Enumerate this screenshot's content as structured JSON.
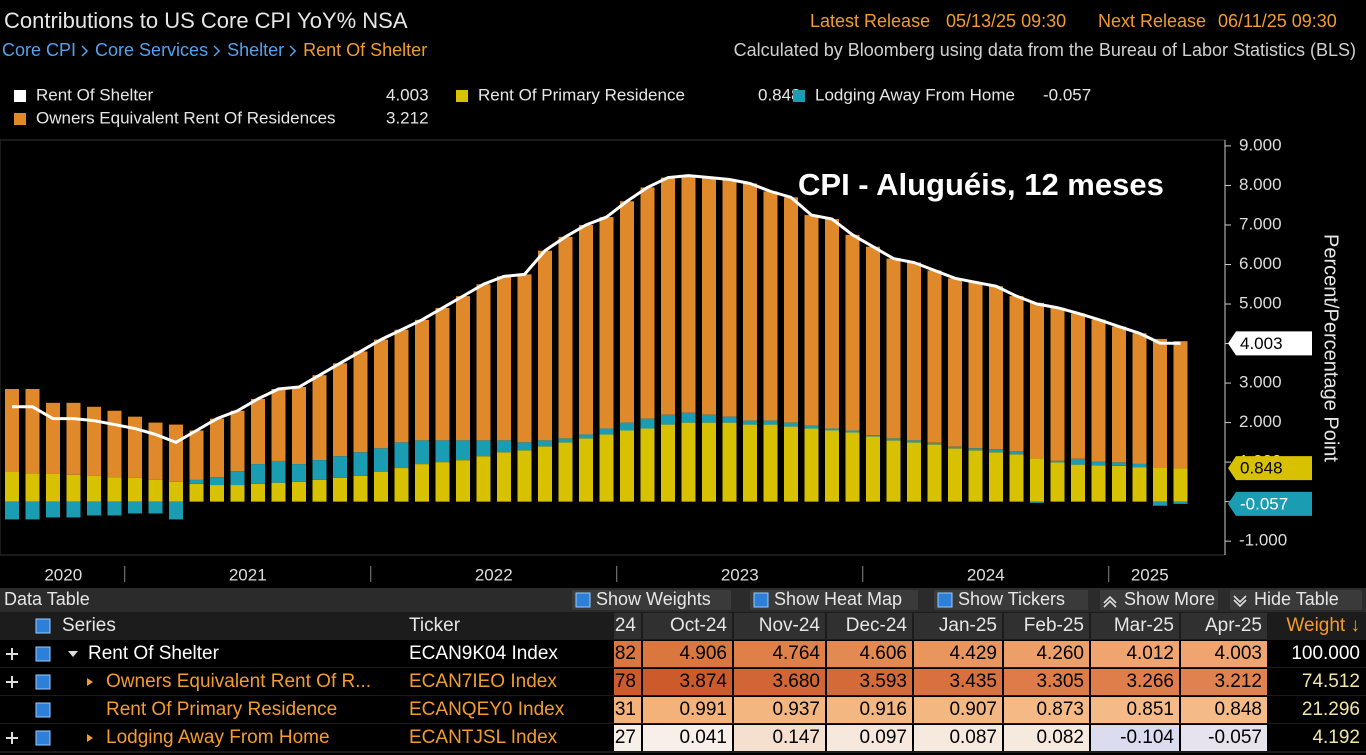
{
  "header": {
    "title": "Contributions to US Core CPI YoY% NSA",
    "breadcrumb": [
      "Core CPI",
      "Core Services",
      "Shelter",
      "Rent Of Shelter"
    ],
    "latest_release_label": "Latest Release",
    "latest_release": "05/13/25 09:30",
    "next_release_label": "Next Release",
    "next_release": "06/11/25 09:30",
    "source": "Calculated by Bloomberg using data from the Bureau of Labor Statistics (BLS)"
  },
  "chart_data": {
    "type": "bar",
    "stacked": true,
    "annotation": "CPI - Aluguéis, 12 meses",
    "ylabel": "Percent/Percentage Point",
    "xtick_labels": [
      "2020",
      "2021",
      "2022",
      "2023",
      "2024",
      "2025"
    ],
    "ylim": [
      -1.35,
      9.15
    ],
    "yticks": [
      {
        "value": 9,
        "label": "9.000"
      },
      {
        "value": 8,
        "label": "8.000"
      },
      {
        "value": 7,
        "label": "7.000"
      },
      {
        "value": 6,
        "label": "6.000"
      },
      {
        "value": 5,
        "label": "5.000"
      },
      {
        "value": 4,
        "label": "4.000"
      },
      {
        "value": 3,
        "label": "3.000"
      },
      {
        "value": 2,
        "label": "2.000"
      },
      {
        "value": 1,
        "label": "1.000"
      },
      {
        "value": 0,
        "label": "0.000"
      },
      {
        "value": -1,
        "label": "-1.000"
      }
    ],
    "series": [
      {
        "name": "Rent Of Shelter",
        "type": "line",
        "color": "#ffffff",
        "values": [
          2.4,
          2.4,
          2.1,
          2.1,
          2.05,
          1.95,
          1.85,
          1.7,
          1.5,
          1.8,
          2.1,
          2.3,
          2.6,
          2.85,
          2.9,
          3.2,
          3.5,
          3.8,
          4.1,
          4.35,
          4.6,
          4.9,
          5.2,
          5.5,
          5.7,
          5.75,
          6.35,
          6.7,
          7.0,
          7.2,
          7.6,
          7.95,
          8.2,
          8.25,
          8.2,
          8.15,
          8.05,
          7.85,
          7.7,
          7.25,
          7.15,
          6.75,
          6.45,
          6.15,
          6.05,
          5.85,
          5.65,
          5.55,
          5.45,
          5.2,
          5.0,
          4.906,
          4.764,
          4.606,
          4.429,
          4.26,
          4.012,
          4.003
        ]
      },
      {
        "name": "Owners Equivalent Rent Of Residences",
        "color": "#e0892b",
        "values": [
          2.1,
          2.13,
          1.8,
          1.82,
          1.75,
          1.68,
          1.55,
          1.45,
          1.45,
          1.25,
          1.48,
          1.53,
          1.65,
          1.82,
          1.95,
          2.15,
          2.35,
          2.55,
          2.75,
          2.85,
          3.05,
          3.35,
          3.65,
          3.95,
          4.15,
          4.25,
          4.8,
          5.1,
          5.3,
          5.35,
          5.6,
          5.85,
          6.0,
          6.0,
          6.0,
          6.0,
          6.0,
          5.8,
          5.7,
          5.33,
          5.3,
          4.95,
          4.77,
          4.55,
          4.5,
          4.36,
          4.26,
          4.2,
          4.12,
          3.92,
          3.93,
          3.874,
          3.68,
          3.593,
          3.435,
          3.305,
          3.266,
          3.212
        ]
      },
      {
        "name": "Rent Of Primary Residence",
        "color": "#d8c100",
        "values": [
          0.75,
          0.72,
          0.7,
          0.68,
          0.65,
          0.62,
          0.6,
          0.55,
          0.5,
          0.45,
          0.42,
          0.42,
          0.45,
          0.48,
          0.5,
          0.55,
          0.6,
          0.65,
          0.75,
          0.85,
          0.95,
          1.0,
          1.05,
          1.15,
          1.25,
          1.3,
          1.4,
          1.5,
          1.6,
          1.7,
          1.8,
          1.85,
          1.95,
          2.0,
          2.0,
          2.0,
          1.95,
          1.95,
          1.9,
          1.85,
          1.8,
          1.75,
          1.65,
          1.55,
          1.5,
          1.45,
          1.35,
          1.3,
          1.25,
          1.2,
          1.1,
          0.991,
          0.937,
          0.916,
          0.907,
          0.873,
          0.851,
          0.848
        ]
      },
      {
        "name": "Lodging Away From Home",
        "color": "#1a9cb2",
        "values": [
          -0.45,
          -0.45,
          -0.4,
          -0.4,
          -0.35,
          -0.35,
          -0.3,
          -0.3,
          -0.45,
          0.1,
          0.2,
          0.35,
          0.5,
          0.55,
          0.45,
          0.5,
          0.55,
          0.6,
          0.6,
          0.65,
          0.6,
          0.55,
          0.5,
          0.4,
          0.3,
          0.2,
          0.15,
          0.1,
          0.1,
          0.15,
          0.2,
          0.25,
          0.25,
          0.25,
          0.2,
          0.15,
          0.1,
          0.1,
          0.1,
          0.07,
          0.05,
          0.05,
          0.03,
          0.05,
          0.05,
          0.04,
          0.04,
          0.05,
          0.08,
          0.08,
          -0.03,
          0.041,
          0.147,
          0.097,
          0.087,
          0.082,
          -0.104,
          -0.057
        ]
      }
    ]
  },
  "table": {
    "title": "Data Table",
    "buttons": [
      "Show Weights",
      "Show Heat Map",
      "Show Tickers",
      "Show More",
      "Hide Table"
    ],
    "columns": [
      "Series",
      "Ticker",
      "24",
      "Oct-24",
      "Nov-24",
      "Dec-24",
      "Jan-25",
      "Feb-25",
      "Mar-25",
      "Apr-25",
      "Weight ↓"
    ],
    "rows": [
      [
        "Rent Of Shelter",
        "ECAN9K04 Index",
        "82",
        "4.906",
        "4.764",
        "4.606",
        "4.429",
        "4.260",
        "4.012",
        "4.003",
        "100.000"
      ],
      [
        "Owners Equivalent Rent Of R...",
        "ECAN7IEO Index",
        "78",
        "3.874",
        "3.680",
        "3.593",
        "3.435",
        "3.305",
        "3.266",
        "3.212",
        "74.512"
      ],
      [
        "Rent Of Primary Residence",
        "ECANQEY0 Index",
        "31",
        "0.991",
        "0.937",
        "0.916",
        "0.907",
        "0.873",
        "0.851",
        "0.848",
        "21.296"
      ],
      [
        "Lodging Away From Home",
        "ECANTJSL Index",
        "27",
        "0.041",
        "0.147",
        "0.097",
        "0.087",
        "0.082",
        "-0.104",
        "-0.057",
        "4.192"
      ]
    ]
  }
}
